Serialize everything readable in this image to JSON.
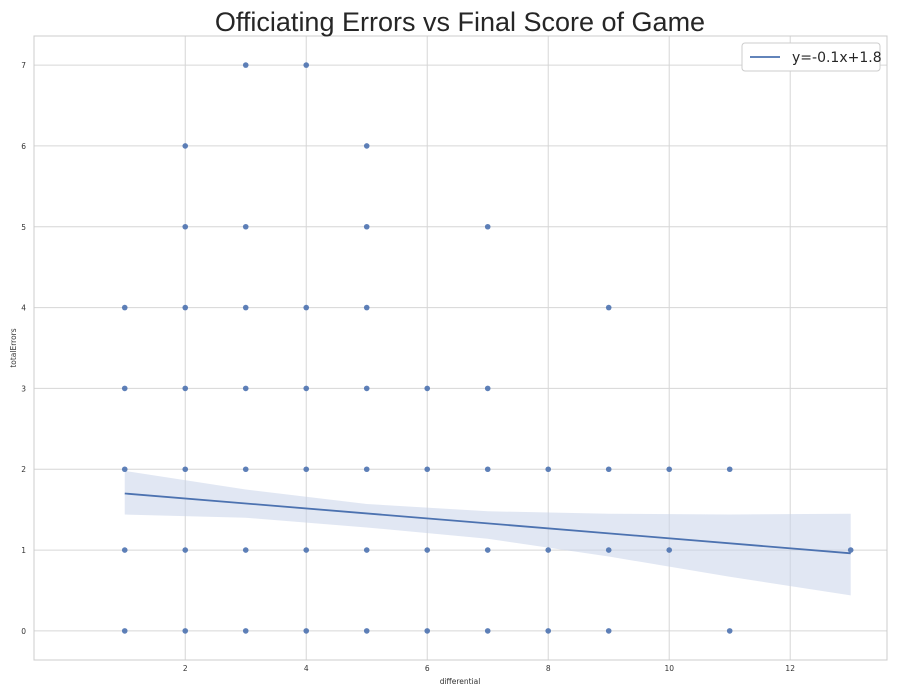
{
  "chart_data": {
    "type": "scatter",
    "title": "Officiating Errors vs Final Score of Game",
    "xlabel": "differential",
    "ylabel": "totalErrors",
    "xlim": [
      -0.5,
      13.6
    ],
    "ylim": [
      -0.36,
      7.36
    ],
    "xticks": [
      2,
      4,
      6,
      8,
      10,
      12
    ],
    "yticks": [
      0,
      1,
      2,
      3,
      4,
      5,
      6,
      7
    ],
    "grid": true,
    "legend_position": "top-right",
    "colors": {
      "points": "#4c72b0",
      "line": "#4c72b0",
      "band": "#c8d4ea",
      "grid": "#d6d6d6",
      "frame": "#cccccc"
    },
    "points": [
      [
        1,
        0
      ],
      [
        1,
        1
      ],
      [
        1,
        2
      ],
      [
        1,
        3
      ],
      [
        1,
        4
      ],
      [
        2,
        0
      ],
      [
        2,
        1
      ],
      [
        2,
        2
      ],
      [
        2,
        3
      ],
      [
        2,
        4
      ],
      [
        2,
        5
      ],
      [
        2,
        6
      ],
      [
        3,
        0
      ],
      [
        3,
        1
      ],
      [
        3,
        2
      ],
      [
        3,
        3
      ],
      [
        3,
        4
      ],
      [
        3,
        5
      ],
      [
        3,
        7
      ],
      [
        4,
        0
      ],
      [
        4,
        1
      ],
      [
        4,
        2
      ],
      [
        4,
        3
      ],
      [
        4,
        4
      ],
      [
        4,
        7
      ],
      [
        5,
        0
      ],
      [
        5,
        1
      ],
      [
        5,
        2
      ],
      [
        5,
        3
      ],
      [
        5,
        4
      ],
      [
        5,
        5
      ],
      [
        5,
        6
      ],
      [
        6,
        0
      ],
      [
        6,
        1
      ],
      [
        6,
        2
      ],
      [
        6,
        3
      ],
      [
        7,
        0
      ],
      [
        7,
        1
      ],
      [
        7,
        2
      ],
      [
        7,
        3
      ],
      [
        7,
        5
      ],
      [
        8,
        0
      ],
      [
        8,
        1
      ],
      [
        8,
        2
      ],
      [
        9,
        0
      ],
      [
        9,
        1
      ],
      [
        9,
        2
      ],
      [
        9,
        4
      ],
      [
        10,
        1
      ],
      [
        10,
        2
      ],
      [
        11,
        0
      ],
      [
        11,
        2
      ],
      [
        13,
        1
      ]
    ],
    "regression": {
      "label": "y=-0.1x+1.8",
      "line": [
        [
          1,
          1.7
        ],
        [
          13,
          0.96
        ]
      ],
      "ci_upper": [
        [
          1,
          1.98
        ],
        [
          3,
          1.75
        ],
        [
          5,
          1.57
        ],
        [
          7,
          1.48
        ],
        [
          9,
          1.45
        ],
        [
          11,
          1.44
        ],
        [
          13,
          1.45
        ]
      ],
      "ci_lower": [
        [
          1,
          1.44
        ],
        [
          3,
          1.4
        ],
        [
          5,
          1.28
        ],
        [
          7,
          1.14
        ],
        [
          9,
          0.92
        ],
        [
          11,
          0.67
        ],
        [
          13,
          0.44
        ]
      ]
    }
  }
}
